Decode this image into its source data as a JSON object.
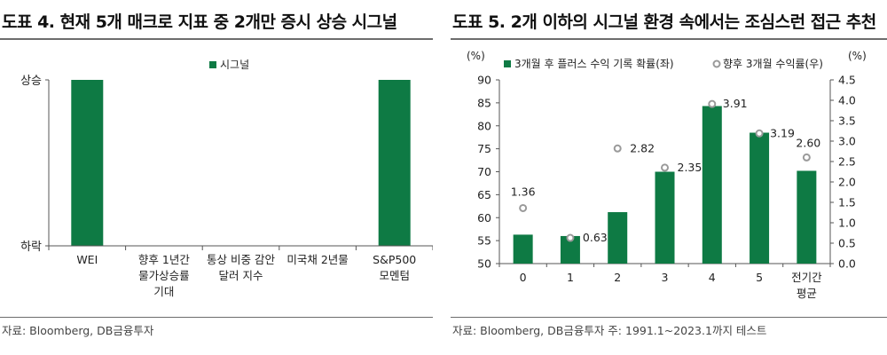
{
  "left": {
    "title": "도표 4. 현재 5개 매크로 지표 중 2개만 증시 상승 시그널",
    "source": "자료: Bloomberg, DB금융투자"
  },
  "right": {
    "title": "도표 5. 2개 이하의 시그널 환경 속에서는 조심스런 접근 추천",
    "source": "자료: Bloomberg, DB금융투자 주: 1991.1~2023.1까지 테스트"
  },
  "colors": {
    "bar": "#0e7a44",
    "dot_fill": "#ffffff",
    "dot_stroke": "#9a9a9a",
    "rule": "#6d6d6d"
  },
  "chart_data": [
    {
      "type": "bar",
      "categories": [
        [
          "WEI"
        ],
        [
          "향후 1년간",
          "물가상승률",
          "기대"
        ],
        [
          "통상 비중 감안",
          "달러 지수"
        ],
        [
          "미국채 2년물"
        ],
        [
          "S&P500",
          "모멘텀"
        ]
      ],
      "series": [
        {
          "name": "시그널",
          "values": [
            1,
            0,
            0,
            0,
            1
          ]
        }
      ],
      "y_ticks": [
        "하락",
        "상승"
      ],
      "ylim": [
        0,
        1
      ],
      "legend": "top-center"
    },
    {
      "type": "bar",
      "categories": [
        "0",
        "1",
        "2",
        "3",
        "4",
        "5",
        [
          "전기간",
          "평균"
        ]
      ],
      "series": [
        {
          "name": "3개월 후 플러스 수익 기록 확률(좌)",
          "type": "bar",
          "axis": "left",
          "values": [
            56.3,
            56.0,
            61.2,
            70.0,
            84.3,
            78.5,
            70.2
          ]
        },
        {
          "name": "향후 3개월 수익률(우)",
          "type": "scatter",
          "axis": "right",
          "values": [
            1.36,
            0.63,
            2.82,
            2.35,
            3.91,
            3.19,
            2.6
          ],
          "labels": [
            "1.36",
            "0.63",
            "2.82",
            "2.35",
            "3.91",
            "3.19",
            "2.60"
          ]
        }
      ],
      "y_left": {
        "unit": "(%)",
        "ylim": [
          50,
          90
        ],
        "ticks": [
          "50",
          "55",
          "60",
          "65",
          "70",
          "75",
          "80",
          "85",
          "90"
        ]
      },
      "y_right": {
        "unit": "(%)",
        "ylim": [
          0,
          4.5
        ],
        "ticks": [
          "0.0",
          "0.5",
          "1.0",
          "1.5",
          "2.0",
          "2.5",
          "3.0",
          "3.5",
          "4.0",
          "4.5"
        ]
      },
      "legend": "top"
    }
  ]
}
